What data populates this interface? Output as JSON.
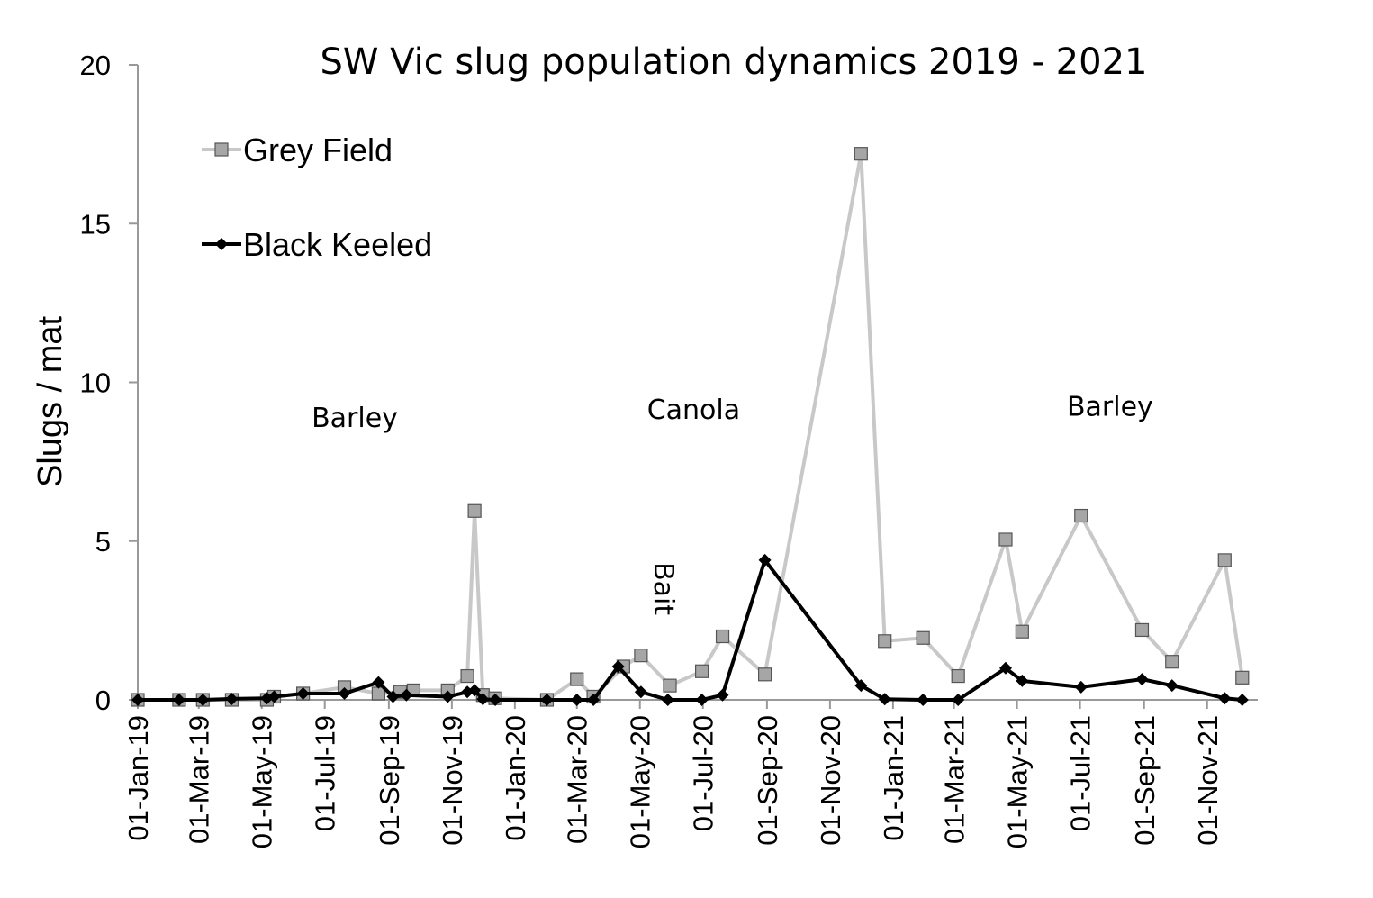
{
  "chart_data": {
    "type": "line",
    "title": "SW Vic slug population dynamics 2019 - 2021",
    "xlabel": "",
    "ylabel": "Slugs / mat",
    "ylim": [
      0,
      20
    ],
    "yticks": [
      "0",
      "5",
      "10",
      "15",
      "20"
    ],
    "xlim": [
      "2019-01-01",
      "2021-12-20"
    ],
    "x_ticks": [
      {
        "label": "01-Jan-19",
        "date": "2019-01-01"
      },
      {
        "label": "01-Mar-19",
        "date": "2019-03-01"
      },
      {
        "label": "01-May-19",
        "date": "2019-05-01"
      },
      {
        "label": "01-Jul-19",
        "date": "2019-07-01"
      },
      {
        "label": "01-Sep-19",
        "date": "2019-09-01"
      },
      {
        "label": "01-Nov-19",
        "date": "2019-11-01"
      },
      {
        "label": "01-Jan-20",
        "date": "2020-01-01"
      },
      {
        "label": "01-Mar-20",
        "date": "2020-03-01"
      },
      {
        "label": "01-May-20",
        "date": "2020-05-01"
      },
      {
        "label": "01-Jul-20",
        "date": "2020-07-01"
      },
      {
        "label": "01-Sep-20",
        "date": "2020-09-01"
      },
      {
        "label": "01-Nov-20",
        "date": "2020-11-01"
      },
      {
        "label": "01-Jan-21",
        "date": "2021-01-01"
      },
      {
        "label": "01-Mar-21",
        "date": "2021-03-01"
      },
      {
        "label": "01-May-21",
        "date": "2021-05-01"
      },
      {
        "label": "01-Jul-21",
        "date": "2021-07-01"
      },
      {
        "label": "01-Sep-21",
        "date": "2021-09-01"
      },
      {
        "label": "01-Nov-21",
        "date": "2021-11-01"
      }
    ],
    "legend_position": "top-left",
    "series": [
      {
        "name": "Grey Field",
        "color": "#c8c8c8",
        "marker": "square",
        "points": [
          [
            "2019-01-01",
            0
          ],
          [
            "2019-02-10",
            0
          ],
          [
            "2019-03-05",
            0
          ],
          [
            "2019-04-02",
            0
          ],
          [
            "2019-05-06",
            0
          ],
          [
            "2019-05-13",
            0.1
          ],
          [
            "2019-06-10",
            0.2
          ],
          [
            "2019-07-20",
            0.4
          ],
          [
            "2019-08-22",
            0.2
          ],
          [
            "2019-09-12",
            0.25
          ],
          [
            "2019-09-25",
            0.3
          ],
          [
            "2019-10-28",
            0.3
          ],
          [
            "2019-11-16",
            0.75
          ],
          [
            "2019-11-23",
            5.95
          ],
          [
            "2019-12-01",
            0.15
          ],
          [
            "2019-12-13",
            0.05
          ],
          [
            "2020-02-01",
            0
          ],
          [
            "2020-03-01",
            0.65
          ],
          [
            "2020-03-17",
            0.1
          ],
          [
            "2020-04-15",
            1.05
          ],
          [
            "2020-05-02",
            1.4
          ],
          [
            "2020-05-30",
            0.45
          ],
          [
            "2020-06-30",
            0.9
          ],
          [
            "2020-07-20",
            2.0
          ],
          [
            "2020-08-30",
            0.8
          ],
          [
            "2020-12-01",
            17.2
          ],
          [
            "2020-12-24",
            1.85
          ],
          [
            "2021-01-30",
            1.95
          ],
          [
            "2021-03-05",
            0.75
          ],
          [
            "2021-04-20",
            5.05
          ],
          [
            "2021-05-06",
            2.15
          ],
          [
            "2021-07-02",
            5.8
          ],
          [
            "2021-08-30",
            2.2
          ],
          [
            "2021-09-28",
            1.2
          ],
          [
            "2021-11-18",
            4.4
          ],
          [
            "2021-12-05",
            0.7
          ]
        ]
      },
      {
        "name": "Black Keeled",
        "color": "#000000",
        "marker": "diamond",
        "points": [
          [
            "2019-01-01",
            0
          ],
          [
            "2019-02-10",
            0
          ],
          [
            "2019-03-05",
            0
          ],
          [
            "2019-04-02",
            0.03
          ],
          [
            "2019-05-06",
            0.05
          ],
          [
            "2019-05-13",
            0.1
          ],
          [
            "2019-06-10",
            0.2
          ],
          [
            "2019-07-20",
            0.2
          ],
          [
            "2019-08-22",
            0.55
          ],
          [
            "2019-09-05",
            0.1
          ],
          [
            "2019-09-18",
            0.15
          ],
          [
            "2019-10-28",
            0.1
          ],
          [
            "2019-11-16",
            0.25
          ],
          [
            "2019-11-23",
            0.3
          ],
          [
            "2019-12-01",
            0.02
          ],
          [
            "2019-12-13",
            0
          ],
          [
            "2020-02-01",
            0
          ],
          [
            "2020-03-01",
            0
          ],
          [
            "2020-03-17",
            0
          ],
          [
            "2020-04-10",
            1.05
          ],
          [
            "2020-05-02",
            0.25
          ],
          [
            "2020-05-28",
            0
          ],
          [
            "2020-06-30",
            0
          ],
          [
            "2020-07-20",
            0.15
          ],
          [
            "2020-08-30",
            4.4
          ],
          [
            "2020-12-01",
            0.45
          ],
          [
            "2020-12-24",
            0.02
          ],
          [
            "2021-01-30",
            0
          ],
          [
            "2021-03-05",
            0
          ],
          [
            "2021-04-20",
            1.0
          ],
          [
            "2021-05-06",
            0.6
          ],
          [
            "2021-07-02",
            0.4
          ],
          [
            "2021-08-30",
            0.65
          ],
          [
            "2021-09-28",
            0.45
          ],
          [
            "2021-11-18",
            0.05
          ],
          [
            "2021-12-05",
            0
          ]
        ]
      }
    ],
    "annotations": [
      {
        "text": "Barley",
        "date": "2019-07-30",
        "y": 8.6,
        "rotation": 0
      },
      {
        "text": "Canola",
        "date": "2020-06-22",
        "y": 8.85,
        "rotation": 0
      },
      {
        "text": "Barley",
        "date": "2021-07-30",
        "y": 8.95,
        "rotation": 0
      },
      {
        "text": "Bait",
        "date": "2020-05-15",
        "y": 3.5,
        "rotation": 90
      }
    ]
  }
}
